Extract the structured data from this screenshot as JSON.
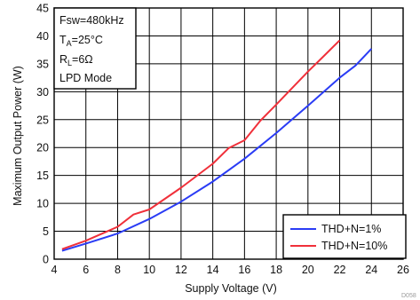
{
  "chart_data": {
    "type": "line",
    "xlabel": "Supply Voltage (V)",
    "ylabel": "Maximum Output Power (W)",
    "xlim": [
      4,
      26
    ],
    "ylim": [
      0,
      45
    ],
    "xticks": [
      "4",
      "6",
      "8",
      "10",
      "12",
      "14",
      "16",
      "18",
      "20",
      "22",
      "24",
      "26"
    ],
    "yticks": [
      "0",
      "5",
      "10",
      "15",
      "20",
      "25",
      "30",
      "35",
      "40",
      "45"
    ],
    "grid": true,
    "legend_position": "bottom-right",
    "annotation": {
      "fsw": "Fsw=480kHz",
      "ta": "T",
      "ta_sub": "A",
      "ta_val": "=25°C",
      "rl": "R",
      "rl_sub": "L",
      "rl_val": "=6Ω",
      "mode": "LPD Mode"
    },
    "figure_id": "D058",
    "series": [
      {
        "name": "THD+N=1%",
        "color": "#2a3cf5",
        "x": [
          4.5,
          6,
          8,
          10,
          12,
          14,
          16,
          18,
          20,
          22,
          23,
          24
        ],
        "y": [
          1.5,
          2.8,
          4.6,
          7.2,
          10.3,
          13.9,
          18.0,
          22.6,
          27.5,
          32.5,
          34.7,
          37.7
        ]
      },
      {
        "name": "THD+N=10%",
        "color": "#f0303a",
        "x": [
          4.5,
          6,
          8,
          9,
          10,
          12,
          14,
          15,
          16,
          17,
          18,
          20,
          21,
          22
        ],
        "y": [
          1.8,
          3.3,
          5.8,
          8.0,
          8.9,
          12.8,
          17.1,
          19.9,
          21.3,
          24.8,
          27.7,
          33.6,
          36.4,
          39.2
        ]
      }
    ]
  }
}
